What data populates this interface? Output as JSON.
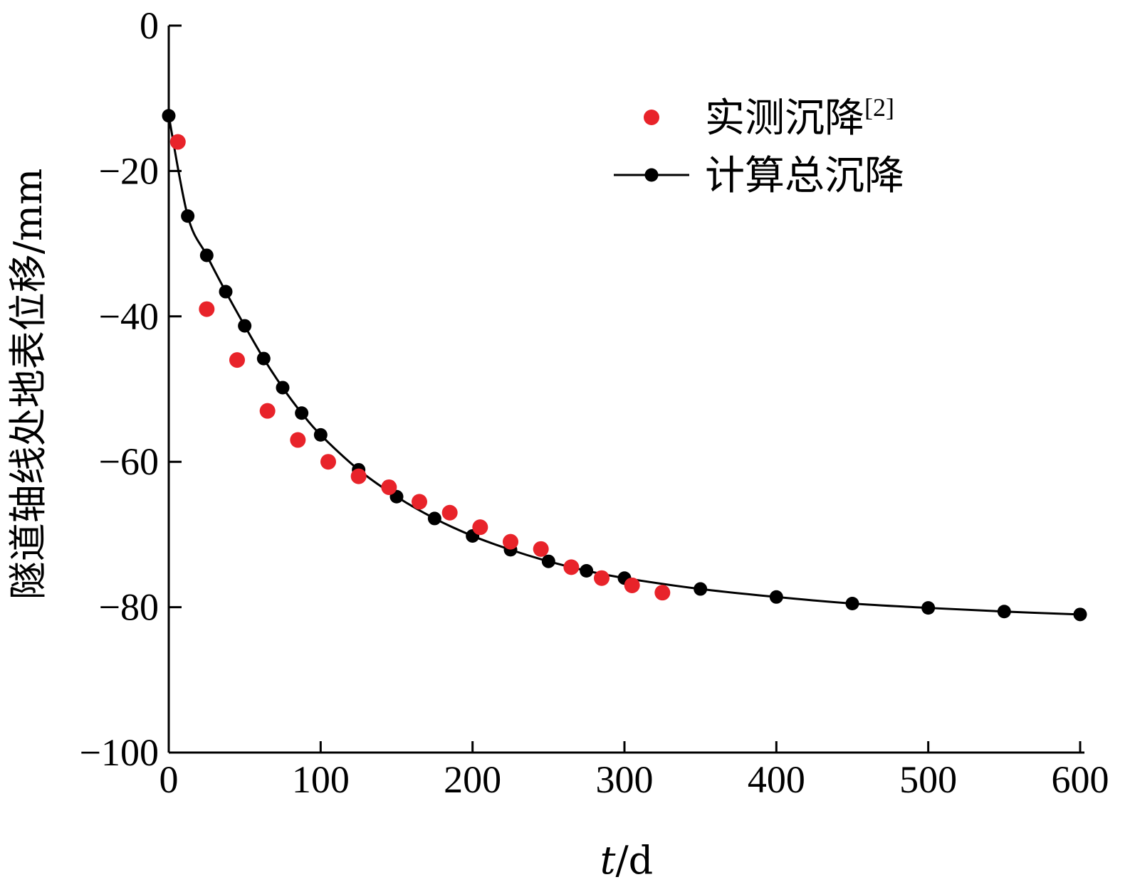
{
  "chart_data": {
    "type": "scatter",
    "title": "",
    "xlabel": {
      "var": "t",
      "unit": "d"
    },
    "ylabel": "隧道轴线处地表位移/mm",
    "xlim": [
      0,
      600
    ],
    "ylim": [
      -100,
      0
    ],
    "x_ticks": [
      "0",
      "100",
      "200",
      "300",
      "400",
      "500",
      "600"
    ],
    "y_ticks": [
      "0",
      "−20",
      "−40",
      "−60",
      "−80",
      "−100"
    ],
    "grid": false,
    "legend_position": "top-right",
    "colors": {
      "measured": "#e8232a",
      "computed": "#000000"
    },
    "series": [
      {
        "name": "实测沉降",
        "name_ref": "[2]",
        "kind": "scatter",
        "x": [
          6,
          25,
          45,
          65,
          85,
          105,
          125,
          145,
          165,
          185,
          205,
          225,
          245,
          265,
          285,
          305,
          325
        ],
        "y": [
          -16,
          -39,
          -46,
          -53,
          -57,
          -60,
          -62,
          -63.5,
          -65.5,
          -67,
          -69,
          -71,
          -72,
          -74.5,
          -76,
          -77,
          -78
        ]
      },
      {
        "name": "计算总沉降",
        "kind": "line+markers",
        "x": [
          0,
          12.5,
          25,
          37.5,
          50,
          62.5,
          75,
          87.5,
          100,
          125,
          150,
          175,
          200,
          225,
          250,
          275,
          300,
          350,
          400,
          450,
          500,
          550,
          600
        ],
        "y": [
          -12.4,
          -26.2,
          -31.6,
          -36.6,
          -41.3,
          -45.8,
          -49.8,
          -53.3,
          -56.3,
          -61.1,
          -64.8,
          -67.8,
          -70.2,
          -72.1,
          -73.7,
          -75.0,
          -76.0,
          -77.5,
          -78.6,
          -79.5,
          -80.1,
          -80.6,
          -81.0
        ]
      }
    ]
  }
}
